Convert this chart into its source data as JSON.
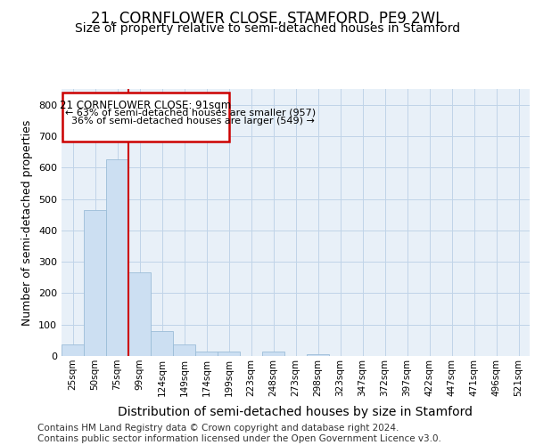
{
  "title": "21, CORNFLOWER CLOSE, STAMFORD, PE9 2WL",
  "subtitle": "Size of property relative to semi-detached houses in Stamford",
  "xlabel": "Distribution of semi-detached houses by size in Stamford",
  "ylabel": "Number of semi-detached properties",
  "categories": [
    "25sqm",
    "50sqm",
    "75sqm",
    "99sqm",
    "124sqm",
    "149sqm",
    "174sqm",
    "199sqm",
    "223sqm",
    "248sqm",
    "273sqm",
    "298sqm",
    "323sqm",
    "347sqm",
    "372sqm",
    "397sqm",
    "422sqm",
    "447sqm",
    "471sqm",
    "496sqm",
    "521sqm"
  ],
  "values": [
    38,
    465,
    625,
    265,
    80,
    37,
    15,
    15,
    0,
    15,
    0,
    5,
    0,
    0,
    0,
    0,
    0,
    0,
    0,
    0,
    0
  ],
  "bar_color": "#ccdff2",
  "bar_edge_color": "#9bbdd8",
  "grid_color": "#c0d4e8",
  "background_color": "#e8f0f8",
  "property_label": "21 CORNFLOWER CLOSE: 91sqm",
  "pct_smaller": 63,
  "pct_larger": 36,
  "n_smaller": 957,
  "n_larger": 549,
  "annotation_box_color": "#ffffff",
  "annotation_box_edge": "#cc0000",
  "red_line_color": "#cc0000",
  "ylim": [
    0,
    850
  ],
  "yticks": [
    0,
    100,
    200,
    300,
    400,
    500,
    600,
    700,
    800
  ],
  "footer": "Contains HM Land Registry data © Crown copyright and database right 2024.\nContains public sector information licensed under the Open Government Licence v3.0.",
  "title_fontsize": 12,
  "subtitle_fontsize": 10,
  "xlabel_fontsize": 10,
  "ylabel_fontsize": 9,
  "annot_fontsize": 8.5,
  "footer_fontsize": 7.5
}
